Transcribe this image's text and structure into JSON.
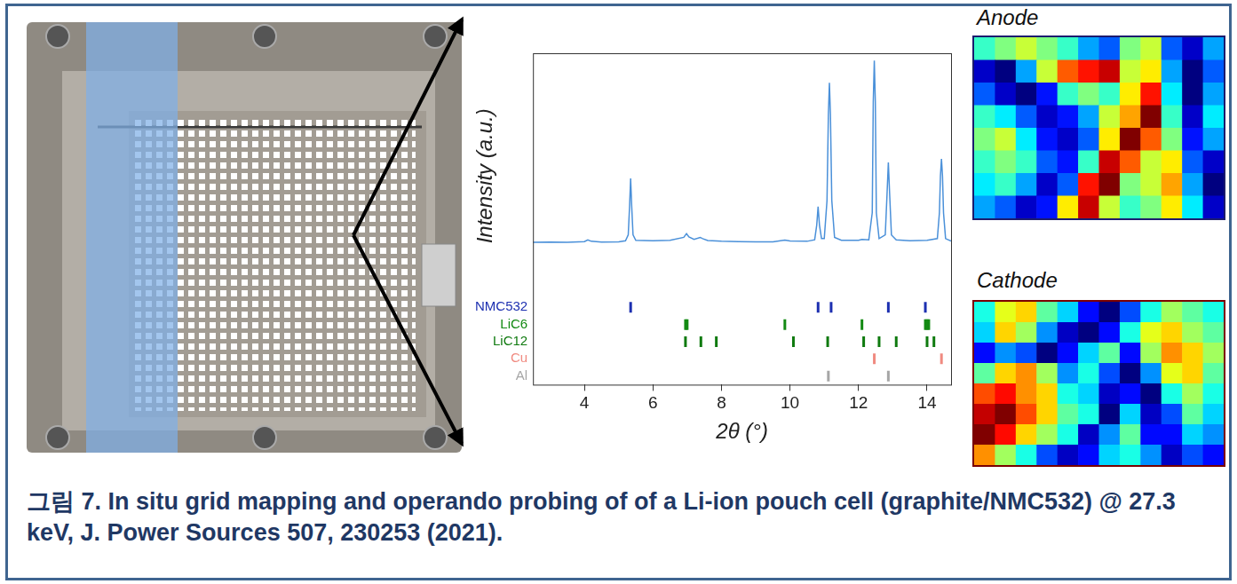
{
  "chart_data": {
    "type": "line",
    "x_label": "2θ (°)",
    "y_label": "Intensity (a.u.)",
    "xlim": [
      2.5,
      14.7
    ],
    "xticks": [
      4,
      6,
      8,
      10,
      12,
      14
    ],
    "ylim": [
      0,
      100
    ],
    "tick_labels": "x",
    "grid": false,
    "legend": "left",
    "series": [
      {
        "type": "line",
        "color": "#4a90d9",
        "x": [
          2.5,
          3.0,
          3.5,
          4.0,
          4.1,
          4.2,
          4.5,
          5.0,
          5.2,
          5.28,
          5.32,
          5.35,
          5.38,
          5.42,
          5.5,
          6.0,
          6.5,
          6.9,
          6.98,
          7.05,
          7.2,
          7.38,
          7.45,
          7.6,
          8.0,
          8.5,
          9.0,
          9.5,
          9.85,
          10.0,
          10.5,
          10.72,
          10.78,
          10.82,
          10.86,
          10.92,
          11.0,
          11.08,
          11.12,
          11.15,
          11.18,
          11.22,
          11.3,
          11.5,
          12.0,
          12.1,
          12.3,
          12.4,
          12.43,
          12.46,
          12.49,
          12.52,
          12.6,
          12.78,
          12.83,
          12.87,
          12.91,
          12.96,
          13.1,
          13.5,
          14.0,
          14.3,
          14.36,
          14.39,
          14.42,
          14.45,
          14.48,
          14.54,
          14.7
        ],
        "values": [
          23.0,
          23.1,
          23.0,
          23.3,
          24.0,
          23.4,
          23.1,
          23.2,
          23.6,
          26,
          38,
          49,
          38,
          26,
          23.8,
          23.6,
          23.8,
          25.0,
          26.5,
          25.2,
          24.2,
          25.0,
          24.5,
          23.7,
          23.4,
          23.3,
          23.2,
          23.2,
          23.9,
          23.5,
          23.4,
          24,
          30,
          37.5,
          30,
          24.5,
          24.5,
          40,
          75,
          88,
          75,
          40,
          25,
          23.8,
          23.8,
          24.2,
          24,
          35,
          80,
          97,
          80,
          35,
          24.5,
          26,
          42,
          55.5,
          42,
          26,
          24,
          23.6,
          23.8,
          24.5,
          35,
          50,
          57,
          50,
          35,
          24.5,
          23.5
        ]
      },
      {
        "name": "NMC532",
        "type": "scatter",
        "marker": "tick",
        "color": "#1c2fb0",
        "x": [
          5.35,
          10.82,
          11.2,
          12.87,
          13.95
        ]
      },
      {
        "name": "LiC6",
        "type": "scatter",
        "marker": "tick",
        "color": "#138a13",
        "x": [
          6.95,
          7.0,
          9.85,
          12.1,
          13.95,
          14.0,
          14.05
        ]
      },
      {
        "name": "LiC12",
        "type": "scatter",
        "marker": "tick",
        "color": "#0f7a0f",
        "x": [
          6.95,
          7.4,
          7.85,
          10.1,
          11.1,
          12.15,
          12.6,
          13.1,
          14.0,
          14.2
        ]
      },
      {
        "name": "Cu",
        "type": "scatter",
        "marker": "tick",
        "color": "#f08a80",
        "x": [
          12.46,
          14.42
        ]
      },
      {
        "name": "Al",
        "type": "scatter",
        "marker": "tick",
        "color": "#a6a6a6",
        "x": [
          11.12,
          12.87
        ]
      }
    ]
  },
  "maps": [
    {
      "title": "Anode",
      "cells": [
        [
          0.45,
          0.5,
          0.55,
          0.5,
          0.45,
          0.35,
          0.3,
          0.5,
          0.55,
          0.3,
          0.2,
          0.35
        ],
        [
          0.2,
          0.15,
          0.35,
          0.55,
          0.7,
          0.75,
          0.8,
          0.55,
          0.6,
          0.35,
          0.15,
          0.3
        ],
        [
          0.3,
          0.2,
          0.15,
          0.25,
          0.45,
          0.5,
          0.45,
          0.6,
          0.75,
          0.4,
          0.15,
          0.35
        ],
        [
          0.45,
          0.4,
          0.3,
          0.2,
          0.25,
          0.35,
          0.55,
          0.65,
          0.85,
          0.45,
          0.2,
          0.4
        ],
        [
          0.5,
          0.55,
          0.4,
          0.25,
          0.2,
          0.3,
          0.6,
          0.85,
          0.7,
          0.5,
          0.25,
          0.35
        ],
        [
          0.45,
          0.5,
          0.45,
          0.3,
          0.25,
          0.45,
          0.8,
          0.7,
          0.55,
          0.6,
          0.3,
          0.2
        ],
        [
          0.4,
          0.45,
          0.35,
          0.2,
          0.3,
          0.75,
          0.85,
          0.5,
          0.55,
          0.65,
          0.35,
          0.15
        ],
        [
          0.35,
          0.3,
          0.2,
          0.25,
          0.6,
          0.8,
          0.55,
          0.45,
          0.5,
          0.6,
          0.4,
          0.2
        ]
      ]
    },
    {
      "title": "Cathode",
      "cells": [
        [
          0.5,
          0.65,
          0.7,
          0.55,
          0.45,
          0.3,
          0.2,
          0.35,
          0.5,
          0.6,
          0.55,
          0.5
        ],
        [
          0.45,
          0.7,
          0.6,
          0.4,
          0.25,
          0.2,
          0.3,
          0.5,
          0.65,
          0.7,
          0.6,
          0.55
        ],
        [
          0.3,
          0.4,
          0.35,
          0.2,
          0.3,
          0.45,
          0.55,
          0.3,
          0.6,
          0.75,
          0.7,
          0.6
        ],
        [
          0.55,
          0.7,
          0.75,
          0.6,
          0.4,
          0.5,
          0.35,
          0.2,
          0.4,
          0.65,
          0.7,
          0.55
        ],
        [
          0.8,
          0.85,
          0.75,
          0.7,
          0.5,
          0.45,
          0.25,
          0.3,
          0.2,
          0.5,
          0.6,
          0.5
        ],
        [
          0.9,
          0.95,
          0.8,
          0.7,
          0.55,
          0.5,
          0.2,
          0.45,
          0.25,
          0.35,
          0.55,
          0.45
        ],
        [
          0.95,
          0.85,
          0.7,
          0.6,
          0.5,
          0.25,
          0.4,
          0.55,
          0.3,
          0.3,
          0.45,
          0.4
        ],
        [
          0.75,
          0.6,
          0.5,
          0.35,
          0.25,
          0.3,
          0.45,
          0.5,
          0.4,
          0.25,
          0.35,
          0.3
        ]
      ]
    }
  ],
  "caption": "그림 7. In situ grid mapping and operando probing of of a Li-ion pouch cell (graphite/NMC532) @ 27.3 keV, J. Power Sources 507, 230253 (2021)."
}
